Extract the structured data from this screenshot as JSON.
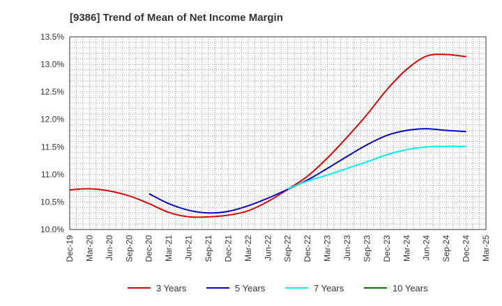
{
  "chart_data": {
    "type": "line",
    "title": "[9386]  Trend of Mean of Net Income Margin",
    "xlabel": "",
    "ylabel": "",
    "x_ticks": [
      "Dec-19",
      "Mar-20",
      "Jun-20",
      "Sep-20",
      "Dec-20",
      "Mar-21",
      "Jun-21",
      "Sep-21",
      "Dec-21",
      "Mar-22",
      "Jun-22",
      "Sep-22",
      "Dec-22",
      "Mar-23",
      "Jun-23",
      "Sep-23",
      "Dec-23",
      "Mar-24",
      "Jun-24",
      "Sep-24",
      "Dec-24",
      "Mar-25"
    ],
    "y_ticks": [
      "10.0%",
      "10.5%",
      "11.0%",
      "11.5%",
      "12.0%",
      "12.5%",
      "13.0%",
      "13.5%"
    ],
    "ylim": [
      10.0,
      13.5
    ],
    "grid": true,
    "legend_position": "bottom",
    "series": [
      {
        "name": "3 Years",
        "color": "#dd0000",
        "x": [
          "Dec-19",
          "Mar-20",
          "Jun-20",
          "Sep-20",
          "Dec-20",
          "Mar-21",
          "Jun-21",
          "Sep-21",
          "Dec-21",
          "Mar-22",
          "Jun-22",
          "Sep-22",
          "Dec-22",
          "Mar-23",
          "Jun-23",
          "Sep-23",
          "Dec-23",
          "Mar-24",
          "Jun-24",
          "Sep-24",
          "Dec-24"
        ],
        "values": [
          10.72,
          10.74,
          10.7,
          10.61,
          10.47,
          10.31,
          10.23,
          10.23,
          10.26,
          10.34,
          10.51,
          10.73,
          10.97,
          11.3,
          11.68,
          12.09,
          12.54,
          12.91,
          13.15,
          13.18,
          13.14
        ]
      },
      {
        "name": "5 Years",
        "color": "#0000cc",
        "x": [
          "Dec-20",
          "Mar-21",
          "Jun-21",
          "Sep-21",
          "Dec-21",
          "Mar-22",
          "Jun-22",
          "Sep-22",
          "Dec-22",
          "Mar-23",
          "Jun-23",
          "Sep-23",
          "Dec-23",
          "Mar-24",
          "Jun-24",
          "Sep-24",
          "Dec-24"
        ],
        "values": [
          10.65,
          10.47,
          10.35,
          10.3,
          10.33,
          10.43,
          10.57,
          10.73,
          10.9,
          11.11,
          11.33,
          11.54,
          11.71,
          11.8,
          11.83,
          11.8,
          11.78
        ]
      },
      {
        "name": "7 Years",
        "color": "#00eeee",
        "x": [
          "Sep-22",
          "Dec-22",
          "Mar-23",
          "Jun-23",
          "Sep-23",
          "Dec-23",
          "Mar-24",
          "Jun-24",
          "Sep-24",
          "Dec-24"
        ],
        "values": [
          10.74,
          10.88,
          10.99,
          11.11,
          11.23,
          11.36,
          11.45,
          11.5,
          11.51,
          11.51
        ]
      },
      {
        "name": "10 Years",
        "color": "#007700",
        "x": [],
        "values": []
      }
    ]
  }
}
